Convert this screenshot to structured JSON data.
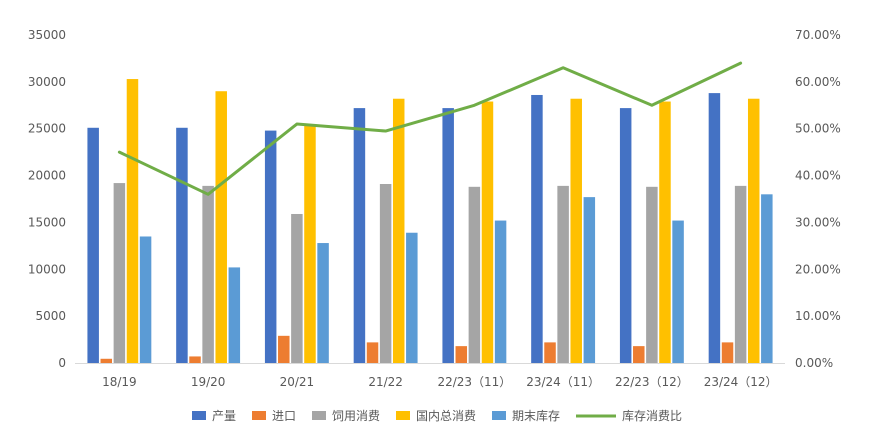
{
  "chart_data": {
    "type": "bar",
    "categories": [
      "18/19",
      "19/20",
      "20/21",
      "21/22",
      "22/23（11）",
      "23/24（11）",
      "22/23（12）",
      "23/24（12）"
    ],
    "series": [
      {
        "name": "产量",
        "type": "bar",
        "axis": "left",
        "color": "#4472C4",
        "values": [
          25100,
          25100,
          24800,
          27200,
          27200,
          28600,
          27200,
          28800
        ]
      },
      {
        "name": "进口",
        "type": "bar",
        "axis": "left",
        "color": "#ED7D31",
        "values": [
          450,
          700,
          2900,
          2200,
          1800,
          2200,
          1800,
          2200
        ]
      },
      {
        "name": "饲用消费",
        "type": "bar",
        "axis": "left",
        "color": "#A5A5A5",
        "values": [
          19200,
          18900,
          15900,
          19100,
          18800,
          18900,
          18800,
          18900
        ]
      },
      {
        "name": "国内总消费",
        "type": "bar",
        "axis": "left",
        "color": "#FFC000",
        "values": [
          30300,
          29000,
          25500,
          28200,
          27900,
          28200,
          27900,
          28200
        ]
      },
      {
        "name": "期末库存",
        "type": "bar",
        "axis": "left",
        "color": "#5B9BD5",
        "values": [
          13500,
          10200,
          12800,
          13900,
          15200,
          17700,
          15200,
          18000
        ]
      },
      {
        "name": "库存消费比",
        "type": "line",
        "axis": "right",
        "color": "#70AD47",
        "values": [
          0.45,
          0.36,
          0.51,
          0.495,
          0.55,
          0.63,
          0.55,
          0.64
        ]
      }
    ],
    "y_left": {
      "min": 0,
      "max": 35000,
      "ticks": [
        "0",
        "5000",
        "10000",
        "15000",
        "20000",
        "25000",
        "30000",
        "35000"
      ]
    },
    "y_right": {
      "min": 0,
      "max": 0.7,
      "ticks": [
        "0.00%",
        "10.00%",
        "20.00%",
        "30.00%",
        "40.00%",
        "50.00%",
        "60.00%",
        "70.00%"
      ]
    },
    "grid": false,
    "legend_position": "bottom"
  }
}
